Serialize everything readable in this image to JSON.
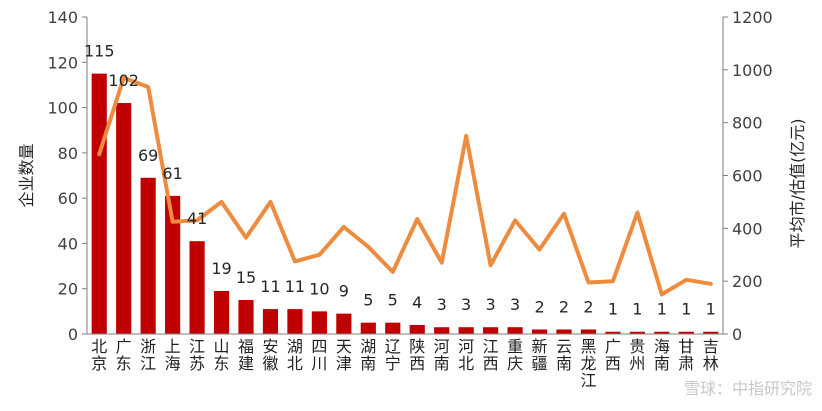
{
  "chart_data": {
    "type": "bar",
    "categories": [
      "北京",
      "广东",
      "浙江",
      "上海",
      "江苏",
      "山东",
      "福建",
      "安徽",
      "湖北",
      "四川",
      "天津",
      "湖南",
      "辽宁",
      "陕西",
      "河南",
      "河北",
      "江西",
      "重庆",
      "新疆",
      "云南",
      "黑龙江",
      "广西",
      "贵州",
      "海南",
      "甘肃",
      "吉林"
    ],
    "ylabel": "企业数量",
    "y2label": "平均市/估值(亿元)",
    "ylim": [
      0,
      140
    ],
    "yticks": [
      0,
      20,
      40,
      60,
      80,
      100,
      120,
      140
    ],
    "y2lim": [
      0,
      1200
    ],
    "y2ticks": [
      0,
      200,
      400,
      600,
      800,
      1000,
      1200
    ],
    "series": [
      {
        "type": "bar",
        "axis": "left",
        "color": "#c00000",
        "values": [
          115,
          102,
          69,
          61,
          41,
          19,
          15,
          11,
          11,
          10,
          9,
          5,
          5,
          4,
          3,
          3,
          3,
          3,
          2,
          2,
          2,
          1,
          1,
          1,
          1,
          1
        ]
      },
      {
        "type": "line",
        "axis": "right",
        "color": "#ed8b3f",
        "values": [
          680,
          970,
          935,
          425,
          430,
          500,
          365,
          500,
          275,
          300,
          405,
          330,
          235,
          435,
          270,
          750,
          260,
          430,
          320,
          455,
          195,
          200,
          460,
          150,
          205,
          190
        ]
      }
    ],
    "grid": false,
    "legend": "none"
  },
  "watermark": "雪球：中指研究院"
}
